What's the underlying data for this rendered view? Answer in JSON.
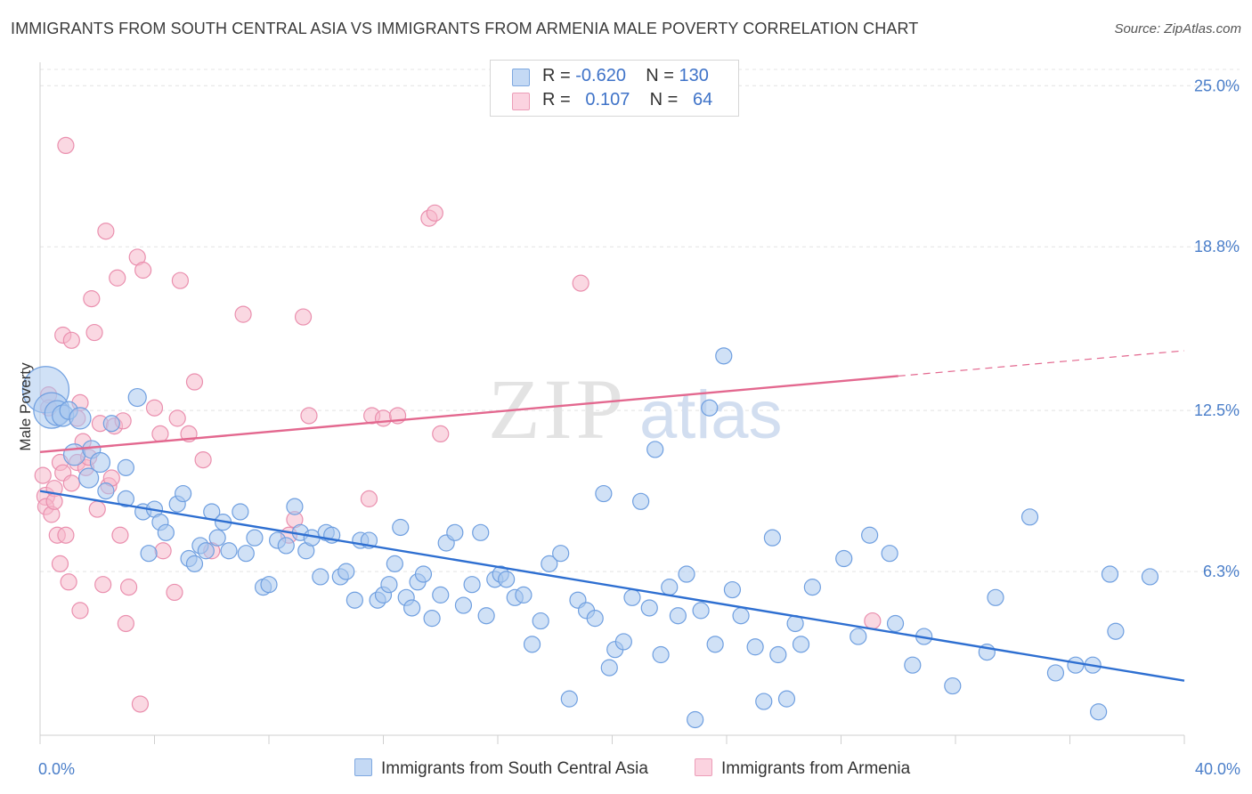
{
  "title": "IMMIGRANTS FROM SOUTH CENTRAL ASIA VS IMMIGRANTS FROM ARMENIA MALE POVERTY CORRELATION CHART",
  "source": "Source: ZipAtlas.com",
  "watermark": {
    "zip": "ZIP",
    "atlas": "atlas"
  },
  "legend": {
    "r_label": "R =",
    "n_label": "N =",
    "rows": [
      {
        "r": "-0.620",
        "n": "130",
        "color": "#a9c8ef"
      },
      {
        "r": "0.107",
        "n": "64",
        "color": "#f5b8cb"
      }
    ]
  },
  "chart_data": {
    "type": "scatter",
    "title": "IMMIGRANTS FROM SOUTH CENTRAL ASIA VS IMMIGRANTS FROM ARMENIA MALE POVERTY CORRELATION CHART",
    "xlabel": "",
    "ylabel": "Male Poverty",
    "xlim": [
      0,
      40
    ],
    "ylim": [
      0,
      25.9
    ],
    "x_tick_labels": [
      "0.0%",
      "40.0%"
    ],
    "y_ticks": [
      {
        "value": 25.0,
        "label": "25.0%"
      },
      {
        "value": 18.8,
        "label": "18.8%"
      },
      {
        "value": 12.5,
        "label": "12.5%"
      },
      {
        "value": 6.3,
        "label": "6.3%"
      }
    ],
    "series": [
      {
        "name": "Immigrants from South Central Asia",
        "color": "#6f9fe0",
        "fill": "#a9c8ef",
        "trend": {
          "x0": 0,
          "y0": 9.4,
          "x1": 40,
          "y1": 2.1,
          "dashed_from": null
        },
        "points": [
          [
            0.2,
            13.3,
            26
          ],
          [
            0.4,
            12.5,
            20
          ],
          [
            0.6,
            12.4,
            14
          ],
          [
            0.8,
            12.3,
            12
          ],
          [
            1.0,
            12.5,
            10
          ],
          [
            1.2,
            10.8,
            12
          ],
          [
            1.4,
            12.2,
            12
          ],
          [
            1.7,
            9.9,
            11
          ],
          [
            1.8,
            11.0,
            10
          ],
          [
            2.1,
            10.5,
            11
          ],
          [
            2.3,
            9.4,
            9
          ],
          [
            2.5,
            12.0,
            9
          ],
          [
            3.0,
            10.3,
            9
          ],
          [
            3.0,
            9.1,
            9
          ],
          [
            3.4,
            13.0,
            10
          ],
          [
            3.6,
            8.6,
            9
          ],
          [
            3.8,
            7.0,
            9
          ],
          [
            4.0,
            8.7,
            9
          ],
          [
            4.2,
            8.2,
            9
          ],
          [
            4.4,
            7.8,
            9
          ],
          [
            4.8,
            8.9,
            9
          ],
          [
            5.0,
            9.3,
            9
          ],
          [
            5.2,
            6.8,
            9
          ],
          [
            5.4,
            6.6,
            9
          ],
          [
            5.6,
            7.3,
            9
          ],
          [
            5.8,
            7.1,
            9
          ],
          [
            6.0,
            8.6,
            9
          ],
          [
            6.2,
            7.6,
            9
          ],
          [
            6.4,
            8.2,
            9
          ],
          [
            6.6,
            7.1,
            9
          ],
          [
            7.0,
            8.6,
            9
          ],
          [
            7.2,
            7.0,
            9
          ],
          [
            7.5,
            7.6,
            9
          ],
          [
            7.8,
            5.7,
            9
          ],
          [
            8.0,
            5.8,
            9
          ],
          [
            8.3,
            7.5,
            9
          ],
          [
            8.6,
            7.3,
            9
          ],
          [
            8.9,
            8.8,
            9
          ],
          [
            9.1,
            7.8,
            9
          ],
          [
            9.3,
            7.1,
            9
          ],
          [
            9.5,
            7.6,
            9
          ],
          [
            9.8,
            6.1,
            9
          ],
          [
            10.0,
            7.8,
            9
          ],
          [
            10.2,
            7.7,
            9
          ],
          [
            10.5,
            6.1,
            9
          ],
          [
            10.7,
            6.3,
            9
          ],
          [
            11.0,
            5.2,
            9
          ],
          [
            11.2,
            7.5,
            9
          ],
          [
            11.5,
            7.5,
            9
          ],
          [
            11.8,
            5.2,
            9
          ],
          [
            12.0,
            5.4,
            9
          ],
          [
            12.2,
            5.8,
            9
          ],
          [
            12.4,
            6.6,
            9
          ],
          [
            12.6,
            8.0,
            9
          ],
          [
            12.8,
            5.3,
            9
          ],
          [
            13.0,
            4.9,
            9
          ],
          [
            13.2,
            5.9,
            9
          ],
          [
            13.4,
            6.2,
            9
          ],
          [
            13.7,
            4.5,
            9
          ],
          [
            14.0,
            5.4,
            9
          ],
          [
            14.2,
            7.4,
            9
          ],
          [
            14.5,
            7.8,
            9
          ],
          [
            14.8,
            5.0,
            9
          ],
          [
            15.1,
            5.8,
            9
          ],
          [
            15.4,
            7.8,
            9
          ],
          [
            15.6,
            4.6,
            9
          ],
          [
            15.9,
            6.0,
            9
          ],
          [
            16.1,
            6.2,
            9
          ],
          [
            16.3,
            6.0,
            9
          ],
          [
            16.6,
            5.3,
            9
          ],
          [
            16.9,
            5.4,
            9
          ],
          [
            17.2,
            3.5,
            9
          ],
          [
            17.5,
            4.4,
            9
          ],
          [
            17.8,
            6.6,
            9
          ],
          [
            18.2,
            7.0,
            9
          ],
          [
            18.5,
            1.4,
            9
          ],
          [
            18.8,
            5.2,
            9
          ],
          [
            19.1,
            4.8,
            9
          ],
          [
            19.4,
            4.5,
            9
          ],
          [
            19.7,
            9.3,
            9
          ],
          [
            19.9,
            2.6,
            9
          ],
          [
            20.1,
            3.3,
            9
          ],
          [
            20.4,
            3.6,
            9
          ],
          [
            20.7,
            5.3,
            9
          ],
          [
            21.0,
            9.0,
            9
          ],
          [
            21.3,
            4.9,
            9
          ],
          [
            21.5,
            11.0,
            9
          ],
          [
            21.7,
            3.1,
            9
          ],
          [
            22.0,
            5.7,
            9
          ],
          [
            22.3,
            4.6,
            9
          ],
          [
            22.6,
            6.2,
            9
          ],
          [
            22.9,
            0.6,
            9
          ],
          [
            23.1,
            4.8,
            9
          ],
          [
            23.4,
            12.6,
            9
          ],
          [
            23.6,
            3.5,
            9
          ],
          [
            23.9,
            14.6,
            9
          ],
          [
            24.2,
            5.6,
            9
          ],
          [
            24.5,
            4.6,
            9
          ],
          [
            25.0,
            3.4,
            9
          ],
          [
            25.3,
            1.3,
            9
          ],
          [
            25.6,
            7.6,
            9
          ],
          [
            25.8,
            3.1,
            9
          ],
          [
            26.1,
            1.4,
            9
          ],
          [
            26.4,
            4.3,
            9
          ],
          [
            26.6,
            3.5,
            9
          ],
          [
            27.0,
            5.7,
            9
          ],
          [
            28.1,
            6.8,
            9
          ],
          [
            28.6,
            3.8,
            9
          ],
          [
            29.0,
            7.7,
            9
          ],
          [
            29.7,
            7.0,
            9
          ],
          [
            29.9,
            4.3,
            9
          ],
          [
            30.5,
            2.7,
            9
          ],
          [
            30.9,
            3.8,
            9
          ],
          [
            31.9,
            1.9,
            9
          ],
          [
            33.1,
            3.2,
            9
          ],
          [
            33.4,
            5.3,
            9
          ],
          [
            34.6,
            8.4,
            9
          ],
          [
            35.5,
            2.4,
            9
          ],
          [
            36.2,
            2.7,
            9
          ],
          [
            36.8,
            2.7,
            9
          ],
          [
            37.0,
            0.9,
            9
          ],
          [
            37.4,
            6.2,
            9
          ],
          [
            37.6,
            4.0,
            9
          ],
          [
            38.8,
            6.1,
            9
          ]
        ]
      },
      {
        "name": "Immigrants from Armenia",
        "color": "#ea8fae",
        "fill": "#f5b8cb",
        "trend": {
          "x0": 0,
          "y0": 10.9,
          "x1": 40,
          "y1": 14.8,
          "dashed_from": 30
        },
        "points": [
          [
            0.1,
            10.0,
            9
          ],
          [
            0.2,
            9.2,
            10
          ],
          [
            0.2,
            8.8,
            9
          ],
          [
            0.3,
            13.1,
            9
          ],
          [
            0.3,
            12.6,
            9
          ],
          [
            0.4,
            8.5,
            9
          ],
          [
            0.5,
            9.5,
            9
          ],
          [
            0.5,
            9.0,
            9
          ],
          [
            0.6,
            7.7,
            9
          ],
          [
            0.7,
            6.6,
            9
          ],
          [
            0.7,
            10.5,
            9
          ],
          [
            0.8,
            15.4,
            9
          ],
          [
            0.8,
            10.1,
            9
          ],
          [
            0.9,
            7.7,
            9
          ],
          [
            0.9,
            22.7,
            9
          ],
          [
            1.0,
            5.9,
            9
          ],
          [
            1.1,
            15.2,
            9
          ],
          [
            1.1,
            9.7,
            9
          ],
          [
            1.3,
            12.2,
            9
          ],
          [
            1.3,
            10.5,
            9
          ],
          [
            1.4,
            12.8,
            9
          ],
          [
            1.4,
            4.8,
            9
          ],
          [
            1.5,
            11.3,
            9
          ],
          [
            1.6,
            10.3,
            9
          ],
          [
            1.7,
            10.7,
            9
          ],
          [
            1.8,
            16.8,
            9
          ],
          [
            1.9,
            15.5,
            9
          ],
          [
            2.0,
            8.7,
            9
          ],
          [
            2.1,
            12.0,
            9
          ],
          [
            2.2,
            5.8,
            9
          ],
          [
            2.3,
            19.4,
            9
          ],
          [
            2.4,
            9.6,
            9
          ],
          [
            2.5,
            9.9,
            9
          ],
          [
            2.6,
            11.9,
            9
          ],
          [
            2.7,
            17.6,
            9
          ],
          [
            2.8,
            7.7,
            9
          ],
          [
            2.9,
            12.1,
            9
          ],
          [
            3.0,
            4.3,
            9
          ],
          [
            3.1,
            5.7,
            9
          ],
          [
            3.4,
            18.4,
            9
          ],
          [
            3.5,
            1.2,
            9
          ],
          [
            3.6,
            17.9,
            9
          ],
          [
            4.0,
            12.6,
            9
          ],
          [
            4.2,
            11.6,
            9
          ],
          [
            4.3,
            7.1,
            9
          ],
          [
            4.7,
            5.5,
            9
          ],
          [
            4.8,
            12.2,
            9
          ],
          [
            4.9,
            17.5,
            9
          ],
          [
            5.2,
            11.6,
            9
          ],
          [
            5.4,
            13.6,
            9
          ],
          [
            5.7,
            10.6,
            9
          ],
          [
            6.0,
            7.1,
            9
          ],
          [
            7.1,
            16.2,
            9
          ],
          [
            8.7,
            7.7,
            9
          ],
          [
            8.9,
            8.3,
            9
          ],
          [
            9.2,
            16.1,
            9
          ],
          [
            9.4,
            12.3,
            9
          ],
          [
            11.5,
            9.1,
            9
          ],
          [
            11.6,
            12.3,
            9
          ],
          [
            12.0,
            12.2,
            9
          ],
          [
            12.5,
            12.3,
            9
          ],
          [
            13.6,
            19.9,
            9
          ],
          [
            13.8,
            20.1,
            9
          ],
          [
            14.0,
            11.6,
            9
          ],
          [
            18.9,
            17.4,
            9
          ],
          [
            29.1,
            4.4,
            9
          ]
        ]
      }
    ]
  },
  "bottom_legend": [
    {
      "label": "Immigrants from South Central Asia",
      "color": "#a9c8ef"
    },
    {
      "label": "Immigrants from Armenia",
      "color": "#f5b8cb"
    }
  ]
}
